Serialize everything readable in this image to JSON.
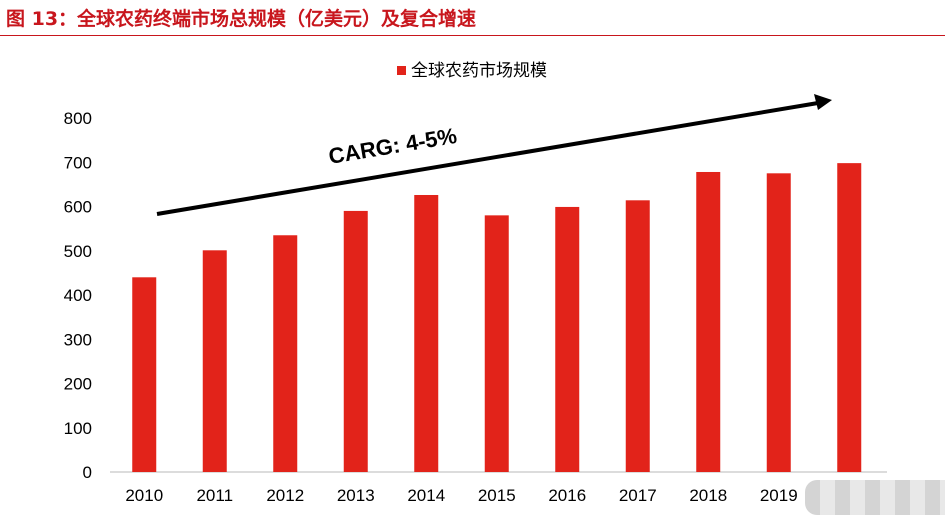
{
  "title": "图 13：全球农药终端市场总规模（亿美元）及复合增速",
  "chart_data": {
    "type": "bar",
    "title": "",
    "categories": [
      "2010",
      "2011",
      "2012",
      "2013",
      "2014",
      "2015",
      "2016",
      "2017",
      "2018",
      "2019",
      ""
    ],
    "series": [
      {
        "name": "全球农药市场规模",
        "color": "#e2231a",
        "values": [
          440,
          501,
          535,
          590,
          626,
          580,
          599,
          614,
          678,
          675,
          698
        ]
      }
    ],
    "ylim": [
      0,
      800
    ],
    "yticks": [
      0,
      100,
      200,
      300,
      400,
      500,
      600,
      700,
      800
    ],
    "grid": false,
    "legend": "top-center",
    "annotation": "CARG: 4-5%"
  }
}
